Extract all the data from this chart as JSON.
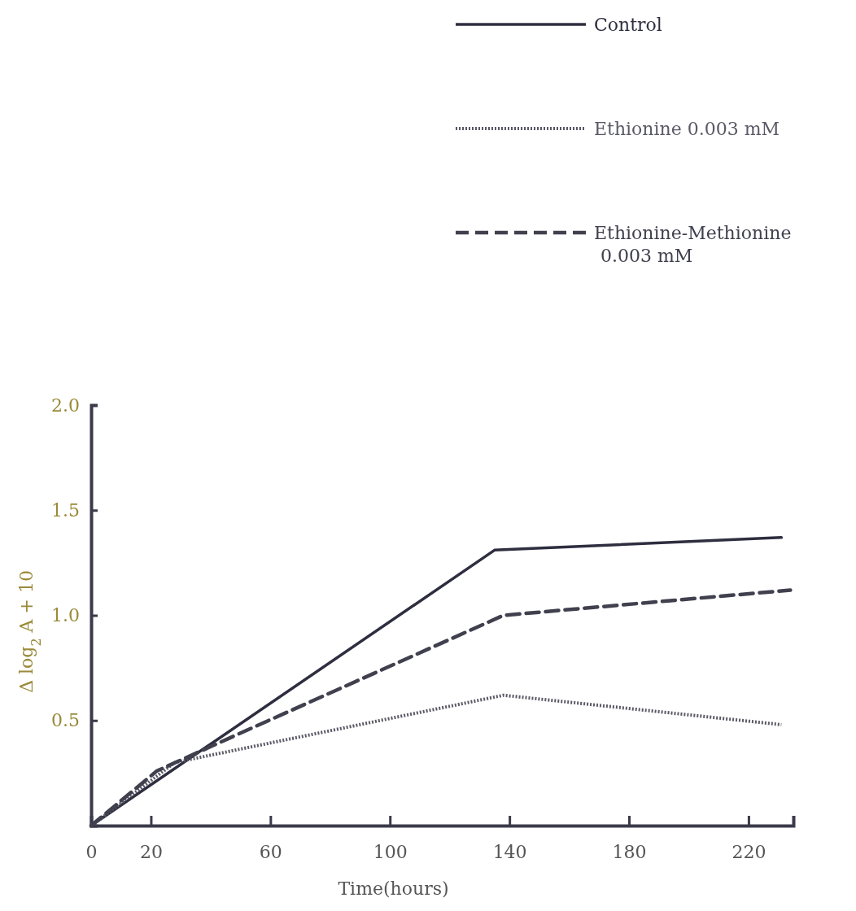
{
  "chart_data": {
    "type": "line",
    "xlabel": "Time(hours)",
    "ylabel": "Δ log$_{2}$ A + 10",
    "xlim": [
      0,
      235
    ],
    "xticks": [
      0,
      20,
      60,
      100,
      140,
      180,
      220
    ],
    "ylim": [
      0,
      2.0
    ],
    "yticks": [
      {
        "value": 0.5,
        "label": "0.5"
      },
      {
        "value": 1.0,
        "label": "1.0"
      },
      {
        "value": 1.5,
        "label": "1.5"
      },
      {
        "value": 2.0,
        "label": "2.0"
      }
    ],
    "legend": "top right",
    "grid": false,
    "marker": "none",
    "series": [
      {
        "name": "Control",
        "color": "#2e2e40",
        "line_style": "solid",
        "x": [
          0,
          135,
          231
        ],
        "values": [
          0,
          1.31,
          1.37
        ]
      },
      {
        "name": "Ethionine 0.003 mM",
        "color": "#5a5a66",
        "line_style": "dotted",
        "x": [
          0,
          28,
          138,
          231
        ],
        "values": [
          0,
          0.3,
          0.62,
          0.48
        ]
      },
      {
        "name": "Ethionine-Methionine\n0.003 mM",
        "color": "#40404e",
        "line_style": "dashed",
        "x": [
          0,
          22,
          50,
          138,
          234
        ],
        "values": [
          0,
          0.26,
          0.44,
          1.0,
          1.12
        ]
      }
    ]
  }
}
